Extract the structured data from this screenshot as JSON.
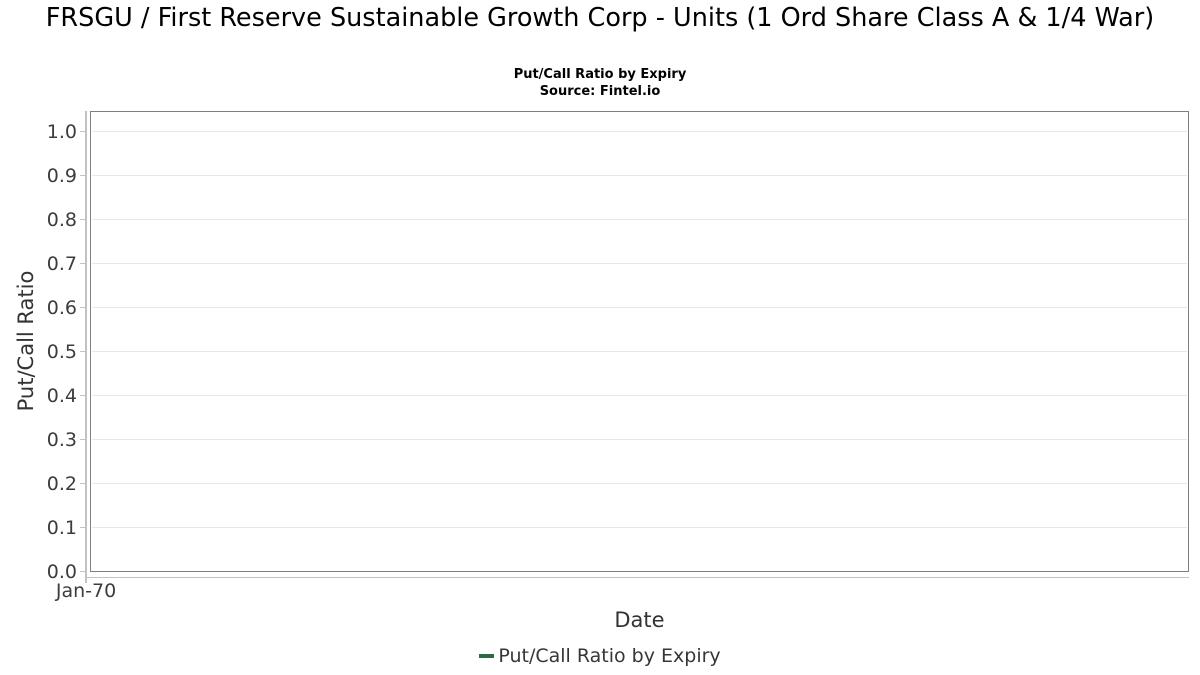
{
  "chart_data": {
    "type": "line",
    "title": "FRSGU / First Reserve Sustainable Growth Corp - Units (1 Ord Share Class A & 1/4 War)",
    "subtitle": "Put/Call Ratio by Expiry",
    "source": "Source: Fintel.io",
    "xlabel": "Date",
    "ylabel": "Put/Call Ratio",
    "x_tick_labels": [
      "Jan-70"
    ],
    "y_tick_labels": [
      "0.0",
      "0.1",
      "0.2",
      "0.3",
      "0.4",
      "0.5",
      "0.6",
      "0.7",
      "0.8",
      "0.9",
      "1.0"
    ],
    "ylim": [
      0.0,
      1.045
    ],
    "grid": true,
    "legend": {
      "position": "bottom",
      "entries": [
        {
          "label": "Put/Call Ratio by Expiry",
          "color": "#2d6a3f"
        }
      ]
    },
    "series": [
      {
        "name": "Put/Call Ratio by Expiry",
        "color": "#2d6a3f",
        "x": [],
        "values": []
      }
    ]
  },
  "colors": {
    "background": "#ffffff",
    "title_text": "#000000",
    "frame": "#7f7f7f",
    "axis_line": "#c2c2c2",
    "tick_mark": "#c2c2c2",
    "gridline": "#e7e7e7",
    "tick_label_text": "#3d3d3d",
    "axis_title_text": "#333333",
    "legend_text": "#363636",
    "series_green": "#2d6a3f"
  }
}
